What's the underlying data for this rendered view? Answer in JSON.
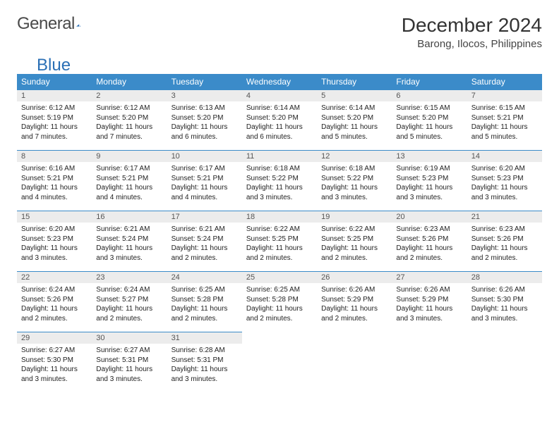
{
  "logo": {
    "text_gray": "General",
    "text_blue": "Blue"
  },
  "title": "December 2024",
  "location": "Barong, Ilocos, Philippines",
  "colors": {
    "header_bg": "#3b8bc9",
    "header_text": "#ffffff",
    "daynum_bg": "#ececec",
    "daynum_text": "#555555",
    "cell_border": "#3b8bc9",
    "body_text": "#222222"
  },
  "day_headers": [
    "Sunday",
    "Monday",
    "Tuesday",
    "Wednesday",
    "Thursday",
    "Friday",
    "Saturday"
  ],
  "grid": {
    "weeks": 5,
    "start_offset": 0,
    "days_in_month": 31
  },
  "days": [
    {
      "n": 1,
      "sunrise": "6:12 AM",
      "sunset": "5:19 PM",
      "daylight": "11 hours and 7 minutes."
    },
    {
      "n": 2,
      "sunrise": "6:12 AM",
      "sunset": "5:20 PM",
      "daylight": "11 hours and 7 minutes."
    },
    {
      "n": 3,
      "sunrise": "6:13 AM",
      "sunset": "5:20 PM",
      "daylight": "11 hours and 6 minutes."
    },
    {
      "n": 4,
      "sunrise": "6:14 AM",
      "sunset": "5:20 PM",
      "daylight": "11 hours and 6 minutes."
    },
    {
      "n": 5,
      "sunrise": "6:14 AM",
      "sunset": "5:20 PM",
      "daylight": "11 hours and 5 minutes."
    },
    {
      "n": 6,
      "sunrise": "6:15 AM",
      "sunset": "5:20 PM",
      "daylight": "11 hours and 5 minutes."
    },
    {
      "n": 7,
      "sunrise": "6:15 AM",
      "sunset": "5:21 PM",
      "daylight": "11 hours and 5 minutes."
    },
    {
      "n": 8,
      "sunrise": "6:16 AM",
      "sunset": "5:21 PM",
      "daylight": "11 hours and 4 minutes."
    },
    {
      "n": 9,
      "sunrise": "6:17 AM",
      "sunset": "5:21 PM",
      "daylight": "11 hours and 4 minutes."
    },
    {
      "n": 10,
      "sunrise": "6:17 AM",
      "sunset": "5:21 PM",
      "daylight": "11 hours and 4 minutes."
    },
    {
      "n": 11,
      "sunrise": "6:18 AM",
      "sunset": "5:22 PM",
      "daylight": "11 hours and 3 minutes."
    },
    {
      "n": 12,
      "sunrise": "6:18 AM",
      "sunset": "5:22 PM",
      "daylight": "11 hours and 3 minutes."
    },
    {
      "n": 13,
      "sunrise": "6:19 AM",
      "sunset": "5:23 PM",
      "daylight": "11 hours and 3 minutes."
    },
    {
      "n": 14,
      "sunrise": "6:20 AM",
      "sunset": "5:23 PM",
      "daylight": "11 hours and 3 minutes."
    },
    {
      "n": 15,
      "sunrise": "6:20 AM",
      "sunset": "5:23 PM",
      "daylight": "11 hours and 3 minutes."
    },
    {
      "n": 16,
      "sunrise": "6:21 AM",
      "sunset": "5:24 PM",
      "daylight": "11 hours and 3 minutes."
    },
    {
      "n": 17,
      "sunrise": "6:21 AM",
      "sunset": "5:24 PM",
      "daylight": "11 hours and 2 minutes."
    },
    {
      "n": 18,
      "sunrise": "6:22 AM",
      "sunset": "5:25 PM",
      "daylight": "11 hours and 2 minutes."
    },
    {
      "n": 19,
      "sunrise": "6:22 AM",
      "sunset": "5:25 PM",
      "daylight": "11 hours and 2 minutes."
    },
    {
      "n": 20,
      "sunrise": "6:23 AM",
      "sunset": "5:26 PM",
      "daylight": "11 hours and 2 minutes."
    },
    {
      "n": 21,
      "sunrise": "6:23 AM",
      "sunset": "5:26 PM",
      "daylight": "11 hours and 2 minutes."
    },
    {
      "n": 22,
      "sunrise": "6:24 AM",
      "sunset": "5:26 PM",
      "daylight": "11 hours and 2 minutes."
    },
    {
      "n": 23,
      "sunrise": "6:24 AM",
      "sunset": "5:27 PM",
      "daylight": "11 hours and 2 minutes."
    },
    {
      "n": 24,
      "sunrise": "6:25 AM",
      "sunset": "5:28 PM",
      "daylight": "11 hours and 2 minutes."
    },
    {
      "n": 25,
      "sunrise": "6:25 AM",
      "sunset": "5:28 PM",
      "daylight": "11 hours and 2 minutes."
    },
    {
      "n": 26,
      "sunrise": "6:26 AM",
      "sunset": "5:29 PM",
      "daylight": "11 hours and 2 minutes."
    },
    {
      "n": 27,
      "sunrise": "6:26 AM",
      "sunset": "5:29 PM",
      "daylight": "11 hours and 3 minutes."
    },
    {
      "n": 28,
      "sunrise": "6:26 AM",
      "sunset": "5:30 PM",
      "daylight": "11 hours and 3 minutes."
    },
    {
      "n": 29,
      "sunrise": "6:27 AM",
      "sunset": "5:30 PM",
      "daylight": "11 hours and 3 minutes."
    },
    {
      "n": 30,
      "sunrise": "6:27 AM",
      "sunset": "5:31 PM",
      "daylight": "11 hours and 3 minutes."
    },
    {
      "n": 31,
      "sunrise": "6:28 AM",
      "sunset": "5:31 PM",
      "daylight": "11 hours and 3 minutes."
    }
  ],
  "labels": {
    "sunrise": "Sunrise:",
    "sunset": "Sunset:",
    "daylight": "Daylight:"
  }
}
